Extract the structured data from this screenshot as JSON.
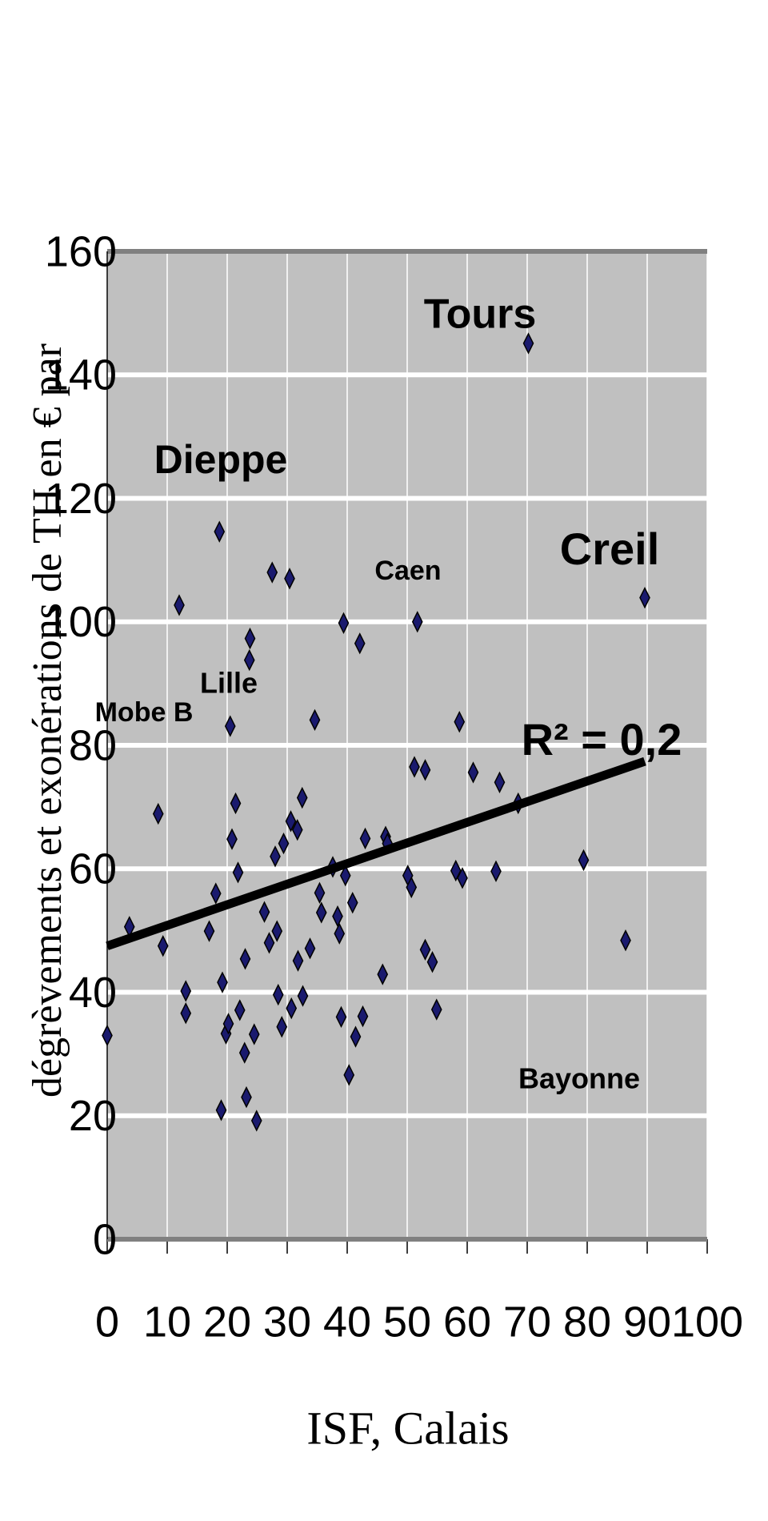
{
  "chart_data": {
    "type": "scatter",
    "y_label": "dégrèvements et exonérations de TH en € par",
    "x_label": "ISF, Calais",
    "x": [
      0,
      3.7,
      8.5,
      9.3,
      12.0,
      13.1,
      13.1,
      17.0,
      18.1,
      18.7,
      19.2,
      19.0,
      19.8,
      20.2,
      20.5,
      20.8,
      21.4,
      21.8,
      22.1,
      22.9,
      23.0,
      23.2,
      23.7,
      23.8,
      24.5,
      24.9,
      26.2,
      27.0,
      27.5,
      28.0,
      28.3,
      28.5,
      29.1,
      29.4,
      30.4,
      30.6,
      30.7,
      31.7,
      31.8,
      32.5,
      32.6,
      33.8,
      34.6,
      35.4,
      35.7,
      37.6,
      38.4,
      38.7,
      39.0,
      39.4,
      39.7,
      40.3,
      40.9,
      41.4,
      42.1,
      42.6,
      43.0,
      45.9,
      46.4,
      46.7,
      50.1,
      50.7,
      51.2,
      51.7,
      53.0,
      53.0,
      54.2,
      54.9,
      58.1,
      58.7,
      59.2,
      61.0,
      64.8,
      65.4,
      68.5,
      70.2,
      79.4,
      86.4,
      89.6
    ],
    "y": [
      33.0,
      50.6,
      68.9,
      47.5,
      102.7,
      40.2,
      36.6,
      49.9,
      56.0,
      114.6,
      41.6,
      20.9,
      33.3,
      34.9,
      83.1,
      64.8,
      70.6,
      59.4,
      37.1,
      30.2,
      45.4,
      23.0,
      93.8,
      97.3,
      33.2,
      19.2,
      53.0,
      48.0,
      108.0,
      62.0,
      49.9,
      39.6,
      34.4,
      64.1,
      107.0,
      67.7,
      37.4,
      66.3,
      45.1,
      71.5,
      39.4,
      47.1,
      84.1,
      56.1,
      52.9,
      60.3,
      52.3,
      49.5,
      36.0,
      99.8,
      58.9,
      26.6,
      54.5,
      32.8,
      96.5,
      36.1,
      64.9,
      42.9,
      65.2,
      64.1,
      58.9,
      57.0,
      76.5,
      100.0,
      76.0,
      46.9,
      44.9,
      37.2,
      59.7,
      83.8,
      58.5,
      75.6,
      59.6,
      74.0,
      70.6,
      145.1,
      61.4,
      48.4,
      103.9
    ],
    "color": "#1a1a6e",
    "trendline": {
      "x": [
        0,
        89.6
      ],
      "y": [
        47.5,
        77.4
      ],
      "color": "#000000"
    },
    "annotations": [
      "Tours",
      "Dieppe",
      "Caen",
      "Creil",
      "Lille",
      "Mobe B",
      "Bayonne",
      "R² = 0,2"
    ],
    "xlim": [
      0,
      100
    ],
    "xticks": [
      0,
      10,
      20,
      30,
      40,
      50,
      60,
      70,
      80,
      90,
      100
    ],
    "ylim": [
      0,
      160
    ],
    "yticks": [
      0,
      20,
      40,
      60,
      80,
      100,
      120,
      140,
      160
    ],
    "grid": true
  }
}
